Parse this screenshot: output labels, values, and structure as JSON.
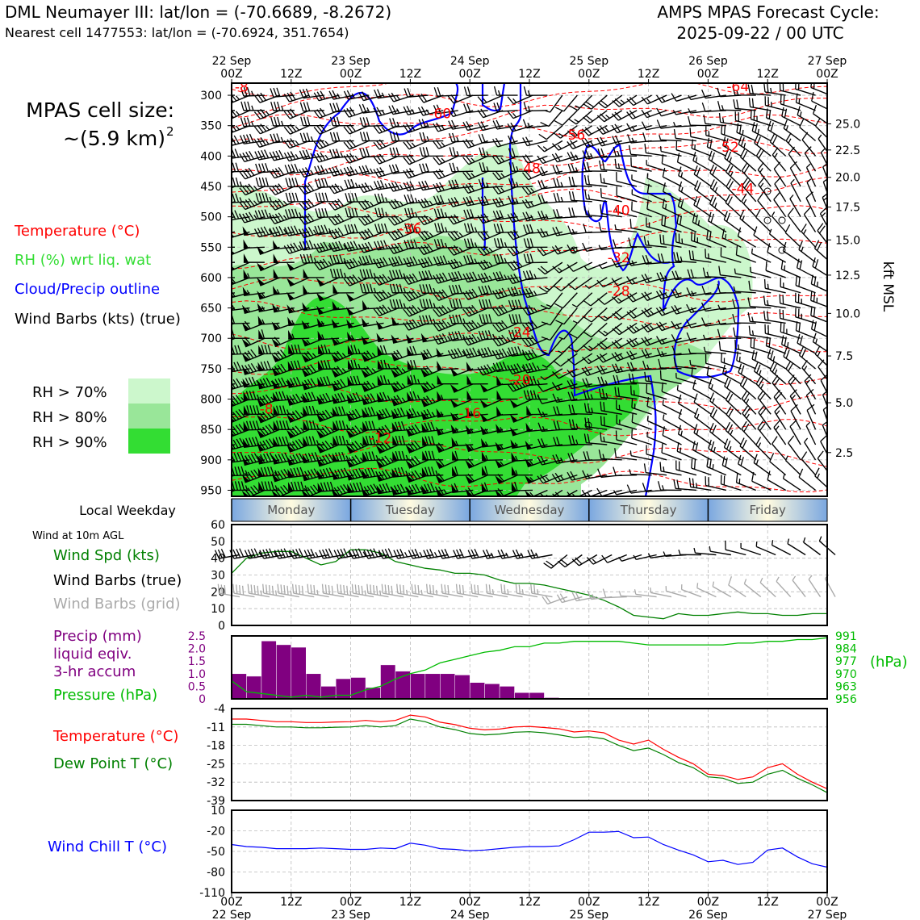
{
  "header": {
    "station": "DML Neumayer III: lat/lon = (-70.6689, -8.2672)",
    "cell": "Nearest cell 1477553: lat/lon = (-70.6924, 351.7654)",
    "cycle_line1": "AMPS MPAS Forecast Cycle:",
    "cycle_line2": "2025-09-22 / 00 UTC"
  },
  "cell_size": {
    "line1": "MPAS cell size:",
    "line2": "~(5.9 km)",
    "sup": "2"
  },
  "upper_legend": {
    "temperature": "Temperature (°C)",
    "rh": "RH (%) wrt liq. wat",
    "cloud": "Cloud/Precip outline",
    "barbs": "Wind Barbs (kts) (true)",
    "rh_levels": [
      "RH > 70%",
      "RH > 80%",
      "RH > 90%"
    ]
  },
  "colors": {
    "temp": "#ff0000",
    "rh_light": "#ccf7cc",
    "rh_mid": "#99e699",
    "rh_dark": "#33dd33",
    "cloud": "#0000ff",
    "precip": "#800080",
    "pressure": "#00bb00",
    "windspd": "#008000",
    "dew": "#008000",
    "chill": "#0000ff",
    "grid": "#bbbbbb"
  },
  "weekday": {
    "label": "Local Weekday",
    "days": [
      "Monday",
      "Tuesday",
      "Wednesday",
      "Thursday",
      "Friday"
    ]
  },
  "wind10m": {
    "title": "Wind at 10m AGL",
    "label_spd": "Wind Spd (kts)",
    "label_true": "Wind Barbs (true)",
    "label_grid": "Wind Barbs (grid)"
  },
  "precip_legend": {
    "l1": "Precip (mm)",
    "l2": "liquid eqiv.",
    "l3": "3-hr accum",
    "pressure": "Pressure (hPa)",
    "unit": "(hPa)"
  },
  "temp_legend": {
    "temp": "Temperature (°C)",
    "dew": "Dew Point T (°C)"
  },
  "chill_legend": {
    "label": "Wind Chill T (°C)"
  },
  "chart_data": [
    {
      "id": "upper_air",
      "type": "heatmap",
      "x_ticks_top": [
        [
          "22 Sep",
          "00Z"
        ],
        [
          "",
          "12Z"
        ],
        [
          "23 Sep",
          "00Z"
        ],
        [
          "",
          "12Z"
        ],
        [
          "24 Sep",
          "00Z"
        ],
        [
          "",
          "12Z"
        ],
        [
          "25 Sep",
          "00Z"
        ],
        [
          "",
          "12Z"
        ],
        [
          "26 Sep",
          "00Z"
        ],
        [
          "",
          "12Z"
        ],
        [
          "27 Sep",
          "00Z"
        ]
      ],
      "xlim_hours": [
        0,
        120
      ],
      "y_ticks_hpa": [
        300,
        350,
        400,
        450,
        500,
        550,
        600,
        650,
        700,
        750,
        800,
        850,
        900,
        950
      ],
      "ylim_hpa": [
        280,
        960
      ],
      "right_axis_label": "kft MSL",
      "right_ticks": [
        {
          "label": "25.0",
          "hpa": 347
        },
        {
          "label": "22.5",
          "hpa": 390
        },
        {
          "label": "20.0",
          "hpa": 435
        },
        {
          "label": "17.5",
          "hpa": 484
        },
        {
          "label": "15.0",
          "hpa": 538
        },
        {
          "label": "12.5",
          "hpa": 596
        },
        {
          "label": "10.0",
          "hpa": 659
        },
        {
          "label": "7.5",
          "hpa": 729
        },
        {
          "label": "5.0",
          "hpa": 806
        },
        {
          "label": "2.5",
          "hpa": 888
        }
      ],
      "temp_labels": [
        {
          "text": "-60",
          "h": 42,
          "p": 330
        },
        {
          "text": "-56",
          "h": 69,
          "p": 365
        },
        {
          "text": "-48",
          "h": 60,
          "p": 420
        },
        {
          "text": "-64",
          "h": 102,
          "p": 285
        },
        {
          "text": "-52",
          "h": 100,
          "p": 385
        },
        {
          "text": "-44",
          "h": 103,
          "p": 453
        },
        {
          "text": "-40",
          "h": 78,
          "p": 489
        },
        {
          "text": "-36",
          "h": 36,
          "p": 520
        },
        {
          "text": "-32",
          "h": 78,
          "p": 567
        },
        {
          "text": "-28",
          "h": 78,
          "p": 622
        },
        {
          "text": "-24",
          "h": 58,
          "p": 690
        },
        {
          "text": "-20",
          "h": 58,
          "p": 768
        },
        {
          "text": "-16",
          "h": 48,
          "p": 823
        },
        {
          "text": "-12",
          "h": 30,
          "p": 864
        },
        {
          "text": "-8",
          "h": 7,
          "p": 816
        },
        {
          "text": "-8",
          "h": 2,
          "p": 286
        }
      ]
    },
    {
      "id": "wind_10m",
      "type": "line",
      "ylim": [
        0,
        60
      ],
      "y_ticks": [
        0,
        10,
        20,
        30,
        40,
        50,
        60
      ],
      "hours": [
        0,
        3,
        6,
        9,
        12,
        15,
        18,
        21,
        24,
        27,
        30,
        33,
        36,
        39,
        42,
        45,
        48,
        51,
        54,
        57,
        60,
        63,
        66,
        69,
        72,
        75,
        78,
        81,
        84,
        87,
        90,
        93,
        96,
        99,
        102,
        105,
        108,
        111,
        114,
        117,
        120
      ],
      "speed_kts": [
        31,
        40,
        43,
        44,
        44,
        40,
        36,
        38,
        45,
        45,
        43,
        38,
        36,
        34,
        33,
        31,
        31,
        30,
        27,
        25,
        25,
        24,
        22,
        20,
        18,
        15,
        11,
        6,
        5,
        4,
        7,
        6,
        6,
        7,
        8,
        7,
        7,
        6,
        6,
        7,
        7
      ]
    },
    {
      "id": "precip_pressure",
      "type": "bar",
      "precip_ylim": [
        0,
        2.5
      ],
      "precip_ticks": [
        "0",
        "0.5",
        "1.0",
        "1.5",
        "2.0",
        "2.5"
      ],
      "bar_hours": [
        0,
        3,
        6,
        9,
        12,
        15,
        18,
        21,
        24,
        27,
        30,
        33,
        36,
        39,
        42,
        45,
        48,
        51,
        54,
        57,
        60,
        63
      ],
      "precip_mm": [
        1.0,
        0.9,
        2.3,
        2.15,
        2.05,
        1.0,
        0.5,
        0.8,
        0.85,
        0.45,
        1.35,
        1.1,
        1.0,
        1.0,
        1.0,
        0.95,
        0.65,
        0.6,
        0.5,
        0.25,
        0.25,
        0.05
      ],
      "pressure_ylim": [
        956,
        991
      ],
      "pressure_ticks": [
        991,
        984,
        977,
        970,
        963,
        956
      ],
      "pressure_hours": [
        0,
        3,
        6,
        9,
        12,
        15,
        18,
        21,
        24,
        27,
        30,
        33,
        36,
        39,
        42,
        45,
        48,
        51,
        54,
        57,
        60,
        63,
        66,
        69,
        72,
        75,
        78,
        81,
        84,
        87,
        90,
        93,
        96,
        99,
        102,
        105,
        108,
        111,
        114,
        117,
        120
      ],
      "pressure_hpa": [
        966,
        960,
        959,
        958,
        957,
        958,
        957,
        958,
        958,
        961,
        963,
        967,
        970,
        972,
        976,
        978,
        980,
        982,
        983,
        985,
        985,
        987,
        987,
        988,
        988,
        988,
        988,
        987,
        986,
        986,
        986,
        986,
        986,
        986,
        987,
        987,
        988,
        988,
        989,
        989,
        990
      ]
    },
    {
      "id": "temperature",
      "type": "line",
      "ylim": [
        -39,
        -4
      ],
      "y_ticks": [
        -4,
        -11,
        -18,
        -25,
        -32,
        -39
      ],
      "hours": [
        0,
        3,
        6,
        9,
        12,
        15,
        18,
        21,
        24,
        27,
        30,
        33,
        36,
        39,
        42,
        45,
        48,
        51,
        54,
        57,
        60,
        63,
        66,
        69,
        72,
        75,
        78,
        81,
        84,
        87,
        90,
        93,
        96,
        99,
        102,
        105,
        108,
        111,
        114,
        117,
        120
      ],
      "series": [
        {
          "name": "Temperature",
          "values": [
            -8.0,
            -8.0,
            -8.5,
            -9.0,
            -9.0,
            -9.3,
            -9.3,
            -9.1,
            -9.0,
            -8.5,
            -9.0,
            -8.5,
            -6.5,
            -7.2,
            -9.2,
            -10.1,
            -11.5,
            -12.1,
            -11.8,
            -11.0,
            -10.8,
            -11.2,
            -11.7,
            -12.9,
            -12.5,
            -13.2,
            -16.0,
            -17.5,
            -16.0,
            -19.5,
            -22.5,
            -25.0,
            -29.0,
            -29.5,
            -31.0,
            -30.0,
            -26.5,
            -25.0,
            -29.0,
            -32.0,
            -34.5
          ]
        },
        {
          "name": "Dew Point",
          "values": [
            -10.0,
            -10.0,
            -10.5,
            -11.0,
            -11.0,
            -11.3,
            -11.3,
            -11.1,
            -11.0,
            -10.5,
            -11.0,
            -10.5,
            -8.0,
            -9.0,
            -11.0,
            -12.0,
            -13.5,
            -14.0,
            -13.7,
            -13.0,
            -12.8,
            -13.2,
            -14.0,
            -15.0,
            -14.7,
            -15.5,
            -18.0,
            -20.0,
            -19.0,
            -21.5,
            -24.5,
            -26.5,
            -30.0,
            -30.5,
            -32.5,
            -32.0,
            -29.0,
            -27.5,
            -30.5,
            -33.0,
            -36.0
          ]
        }
      ]
    },
    {
      "id": "wind_chill",
      "type": "line",
      "ylim": [
        -110,
        10
      ],
      "y_ticks": [
        "10",
        "-20",
        "-50",
        "-80",
        "-110"
      ],
      "x_ticks_bottom": [
        [
          "00Z",
          "22 Sep"
        ],
        [
          "12Z",
          ""
        ],
        [
          "00Z",
          "23 Sep"
        ],
        [
          "12Z",
          ""
        ],
        [
          "00Z",
          "24 Sep"
        ],
        [
          "12Z",
          ""
        ],
        [
          "00Z",
          "25 Sep"
        ],
        [
          "12Z",
          ""
        ],
        [
          "00Z",
          "26 Sep"
        ],
        [
          "12Z",
          ""
        ],
        [
          "00Z",
          "27 Sep"
        ]
      ],
      "hours": [
        0,
        3,
        6,
        9,
        12,
        15,
        18,
        21,
        24,
        27,
        30,
        33,
        36,
        39,
        42,
        45,
        48,
        51,
        54,
        57,
        60,
        63,
        66,
        69,
        72,
        75,
        78,
        81,
        84,
        87,
        90,
        93,
        96,
        99,
        102,
        105,
        108,
        111,
        114,
        117,
        120
      ],
      "values": [
        -40,
        -43,
        -44,
        -46,
        -46,
        -46,
        -45,
        -46,
        -47,
        -47,
        -45,
        -46,
        -38,
        -41,
        -46,
        -47,
        -49,
        -48,
        -46,
        -44,
        -43,
        -43,
        -42,
        -33,
        -22,
        -22,
        -21,
        -30,
        -29,
        -40,
        -48,
        -55,
        -65,
        -63,
        -69,
        -66,
        -48,
        -45,
        -58,
        -68,
        -73
      ]
    }
  ]
}
